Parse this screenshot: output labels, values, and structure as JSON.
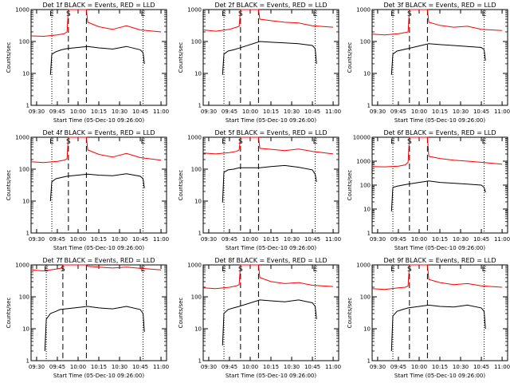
{
  "chart_data": {
    "type": "line",
    "grid": false,
    "time_axis": {
      "tick_labels": [
        "09:30",
        "09:45",
        "10:00",
        "10:15",
        "10:30",
        "10:45",
        "11:00"
      ],
      "range": [
        "09:26:00",
        "11:04:00"
      ]
    },
    "y_axis": {
      "scale": "log",
      "label": "Counts/sec"
    },
    "colors": {
      "events": "#000000",
      "lld": "#ff0000"
    },
    "marker_labels": [
      "E",
      "S",
      "E"
    ],
    "panels": [
      {
        "title": "Det 1f BLACK = Events, RED = LLD",
        "xlabel": "Start Time (05-Dec-10 09:26:00)",
        "ylim": [
          1,
          1000
        ],
        "y_tick_labels": [
          "1",
          "10",
          "100",
          "1000"
        ],
        "dotted_markers": [
          "09:41",
          "10:47"
        ],
        "dashed_markers": [
          "09:53",
          "10:06"
        ],
        "series": [
          {
            "name": "Events",
            "x": [
              "09:40",
              "09:41",
              "09:44",
              "09:48",
              "09:52",
              "10:07",
              "10:15",
              "10:25",
              "10:35",
              "10:45",
              "10:47",
              "10:48"
            ],
            "y": [
              9,
              40,
              48,
              55,
              60,
              70,
              63,
              58,
              70,
              55,
              45,
              20
            ]
          },
          {
            "name": "LLD",
            "x": [
              "09:26",
              "09:35",
              "09:45",
              "09:50",
              "09:52",
              "09:53",
              "10:06",
              "10:07",
              "10:15",
              "10:25",
              "10:35",
              "10:45",
              "11:00"
            ],
            "y": [
              150,
              145,
              160,
              175,
              200,
              1000,
              1000,
              400,
              290,
              240,
              310,
              230,
              200
            ]
          }
        ]
      },
      {
        "title": "Det 2f BLACK = Events, RED = LLD",
        "xlabel": "Start Time (05-Dec-10 09:26:00)",
        "ylim": [
          1,
          1000
        ],
        "y_tick_labels": [
          "1",
          "10",
          "100",
          "1000"
        ],
        "dotted_markers": [
          "09:41",
          "10:47"
        ],
        "dashed_markers": [
          "09:53",
          "10:06"
        ],
        "series": [
          {
            "name": "Events",
            "x": [
              "09:40",
              "09:41",
              "09:44",
              "09:48",
              "09:52",
              "10:07",
              "10:15",
              "10:25",
              "10:35",
              "10:45",
              "10:47",
              "10:48"
            ],
            "y": [
              9,
              40,
              50,
              55,
              62,
              100,
              95,
              90,
              85,
              75,
              60,
              20
            ]
          },
          {
            "name": "LLD",
            "x": [
              "09:26",
              "09:35",
              "09:45",
              "09:50",
              "09:52",
              "09:53",
              "10:06",
              "10:07",
              "10:15",
              "10:25",
              "10:35",
              "10:45",
              "11:00"
            ],
            "y": [
              230,
              210,
              240,
              280,
              300,
              1000,
              1000,
              500,
              450,
              400,
              380,
              310,
              280
            ]
          }
        ]
      },
      {
        "title": "Det 3f BLACK = Events, RED = LLD",
        "xlabel": "Start Time (05-Dec-10 09:26:00)",
        "ylim": [
          1,
          1000
        ],
        "y_tick_labels": [
          "1",
          "10",
          "100",
          "1000"
        ],
        "dotted_markers": [
          "09:41",
          "10:47"
        ],
        "dashed_markers": [
          "09:53",
          "10:06"
        ],
        "series": [
          {
            "name": "Events",
            "x": [
              "09:40",
              "09:41",
              "09:44",
              "09:48",
              "09:52",
              "10:07",
              "10:15",
              "10:25",
              "10:35",
              "10:45",
              "10:47",
              "10:48"
            ],
            "y": [
              9,
              40,
              50,
              55,
              60,
              85,
              80,
              75,
              70,
              65,
              55,
              25
            ]
          },
          {
            "name": "LLD",
            "x": [
              "09:26",
              "09:35",
              "09:45",
              "09:50",
              "09:52",
              "09:53",
              "10:06",
              "10:07",
              "10:15",
              "10:25",
              "10:35",
              "10:45",
              "11:00"
            ],
            "y": [
              170,
              160,
              175,
              190,
              200,
              1000,
              1000,
              400,
              320,
              280,
              300,
              240,
              220
            ]
          }
        ]
      },
      {
        "title": "Det 4f BLACK = Events, RED = LLD",
        "xlabel": "Start Time (05-Dec-10 09:26:00)",
        "ylim": [
          1,
          1000
        ],
        "y_tick_labels": [
          "1",
          "10",
          "100",
          "1000"
        ],
        "dotted_markers": [
          "09:41",
          "10:47"
        ],
        "dashed_markers": [
          "09:53",
          "10:06"
        ],
        "series": [
          {
            "name": "Events",
            "x": [
              "09:40",
              "09:41",
              "09:44",
              "09:48",
              "09:52",
              "10:07",
              "10:15",
              "10:25",
              "10:35",
              "10:45",
              "10:47",
              "10:48"
            ],
            "y": [
              10,
              40,
              50,
              55,
              60,
              70,
              65,
              62,
              72,
              60,
              50,
              25
            ]
          },
          {
            "name": "LLD",
            "x": [
              "09:26",
              "09:35",
              "09:45",
              "09:50",
              "09:52",
              "09:53",
              "10:06",
              "10:07",
              "10:15",
              "10:25",
              "10:35",
              "10:45",
              "11:00"
            ],
            "y": [
              170,
              160,
              175,
              190,
              210,
              1000,
              1000,
              400,
              290,
              240,
              310,
              230,
              190
            ]
          }
        ]
      },
      {
        "title": "Det 5f BLACK = Events, RED = LLD",
        "xlabel": "Start Time (05-Dec-10 09:26:00)",
        "ylim": [
          1,
          1000
        ],
        "y_tick_labels": [
          "1",
          "10",
          "100",
          "1000"
        ],
        "dotted_markers": [
          "09:41",
          "10:47"
        ],
        "dashed_markers": [
          "09:53",
          "10:06"
        ],
        "series": [
          {
            "name": "Events",
            "x": [
              "09:40",
              "09:41",
              "09:44",
              "09:48",
              "09:52",
              "10:07",
              "10:15",
              "10:25",
              "10:35",
              "10:45",
              "10:47",
              "10:48"
            ],
            "y": [
              9,
              80,
              95,
              100,
              110,
              110,
              120,
              130,
              115,
              95,
              70,
              40
            ]
          },
          {
            "name": "LLD",
            "x": [
              "09:26",
              "09:35",
              "09:45",
              "09:50",
              "09:52",
              "09:53",
              "10:06",
              "10:07",
              "10:15",
              "10:25",
              "10:35",
              "10:45",
              "11:00"
            ],
            "y": [
              320,
              300,
              330,
              360,
              400,
              1000,
              1000,
              450,
              420,
              380,
              430,
              360,
              300
            ]
          }
        ]
      },
      {
        "title": "Det 6f BLACK = Events, RED = LLD",
        "xlabel": "Start Time (05-Dec-10 09:26:00)",
        "ylim": [
          1,
          10000
        ],
        "y_tick_labels": [
          "1",
          "10",
          "100",
          "1000",
          "10000"
        ],
        "dotted_markers": [
          "09:41",
          "10:47"
        ],
        "dashed_markers": [
          "09:53",
          "10:06"
        ],
        "series": [
          {
            "name": "Events",
            "x": [
              "09:40",
              "09:41",
              "09:44",
              "09:48",
              "09:52",
              "10:07",
              "10:15",
              "10:25",
              "10:35",
              "10:45",
              "10:47",
              "10:48"
            ],
            "y": [
              8,
              80,
              90,
              100,
              110,
              150,
              130,
              120,
              110,
              100,
              80,
              50
            ]
          },
          {
            "name": "LLD",
            "x": [
              "09:26",
              "09:35",
              "09:45",
              "09:50",
              "09:52",
              "09:53",
              "10:06",
              "10:07",
              "10:15",
              "10:25",
              "10:35",
              "10:45",
              "11:00"
            ],
            "y": [
              600,
              580,
              620,
              700,
              900,
              10000,
              10000,
              1600,
              1300,
              1100,
              1000,
              900,
              750
            ]
          }
        ]
      },
      {
        "title": "Det 7f BLACK = Events, RED = LLD",
        "xlabel": "Start Time (05-Dec-10 09:26:00)",
        "ylim": [
          1,
          1000
        ],
        "y_tick_labels": [
          "1",
          "10",
          "100",
          "1000"
        ],
        "dotted_markers": [
          "09:37",
          "10:47"
        ],
        "dashed_markers": [
          "09:49",
          "10:06"
        ],
        "series": [
          {
            "name": "Events",
            "x": [
              "09:36",
              "09:37",
              "09:40",
              "09:44",
              "09:47",
              "10:07",
              "10:15",
              "10:25",
              "10:35",
              "10:45",
              "10:47",
              "10:48"
            ],
            "y": [
              2,
              20,
              30,
              35,
              40,
              50,
              45,
              42,
              50,
              40,
              30,
              8
            ]
          },
          {
            "name": "LLD",
            "x": [
              "09:26",
              "09:35",
              "09:45",
              "09:48",
              "09:49",
              "10:06",
              "10:07",
              "10:15",
              "10:25",
              "10:35",
              "10:45",
              "11:00"
            ],
            "y": [
              700,
              650,
              750,
              800,
              1000,
              1000,
              900,
              850,
              800,
              850,
              780,
              700
            ]
          }
        ]
      },
      {
        "title": "Det 8f BLACK = Events, RED = LLD",
        "xlabel": "Start Time (05-Dec-10 09:26:00)",
        "ylim": [
          1,
          1000
        ],
        "y_tick_labels": [
          "1",
          "10",
          "100",
          "1000"
        ],
        "dotted_markers": [
          "09:41",
          "10:47"
        ],
        "dashed_markers": [
          "09:53",
          "10:06"
        ],
        "series": [
          {
            "name": "Events",
            "x": [
              "09:40",
              "09:41",
              "09:44",
              "09:48",
              "09:52",
              "10:07",
              "10:15",
              "10:25",
              "10:35",
              "10:45",
              "10:47",
              "10:48"
            ],
            "y": [
              3,
              30,
              40,
              45,
              50,
              80,
              75,
              70,
              80,
              65,
              50,
              20
            ]
          },
          {
            "name": "LLD",
            "x": [
              "09:26",
              "09:35",
              "09:45",
              "09:50",
              "09:52",
              "09:53",
              "10:06",
              "10:07",
              "10:15",
              "10:25",
              "10:35",
              "10:45",
              "11:00"
            ],
            "y": [
              190,
              180,
              200,
              220,
              240,
              1000,
              1000,
              400,
              300,
              260,
              280,
              230,
              210
            ]
          }
        ]
      },
      {
        "title": "Det 9f BLACK = Events, RED = LLD",
        "xlabel": "Start Time (05-Dec-10 09:26:00)",
        "ylim": [
          1,
          1000
        ],
        "y_tick_labels": [
          "1",
          "10",
          "100",
          "1000"
        ],
        "dotted_markers": [
          "09:41",
          "10:47"
        ],
        "dashed_markers": [
          "09:53",
          "10:06"
        ],
        "series": [
          {
            "name": "Events",
            "x": [
              "09:40",
              "09:41",
              "09:44",
              "09:48",
              "09:52",
              "10:07",
              "10:15",
              "10:25",
              "10:35",
              "10:45",
              "10:47",
              "10:48"
            ],
            "y": [
              2,
              25,
              35,
              40,
              45,
              55,
              50,
              48,
              55,
              45,
              35,
              10
            ]
          },
          {
            "name": "LLD",
            "x": [
              "09:26",
              "09:35",
              "09:45",
              "09:50",
              "09:52",
              "09:53",
              "10:06",
              "10:07",
              "10:15",
              "10:25",
              "10:35",
              "10:45",
              "11:00"
            ],
            "y": [
              180,
              170,
              190,
              200,
              220,
              1000,
              1000,
              350,
              280,
              240,
              260,
              220,
              200
            ]
          }
        ]
      }
    ]
  }
}
